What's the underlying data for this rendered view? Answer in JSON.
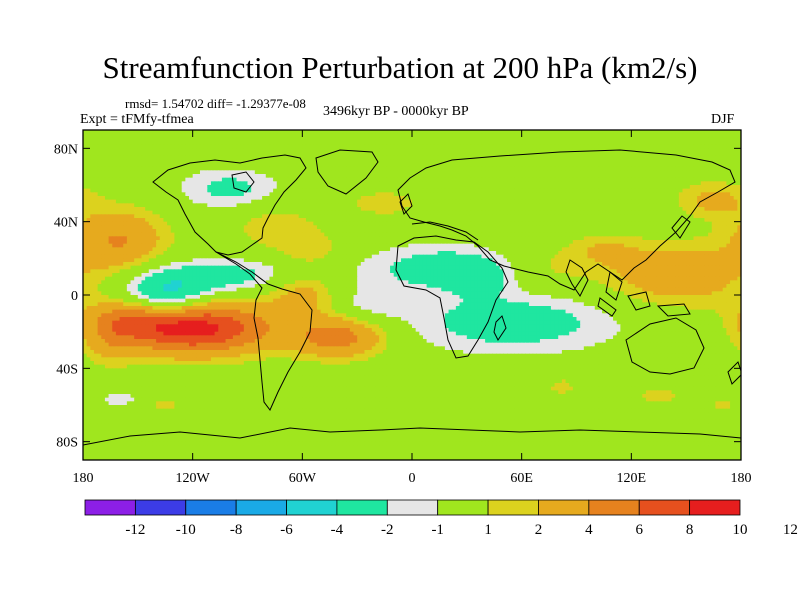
{
  "title": "Streamfunction Perturbation at 200 hPa (km2/s)",
  "stats": "rmsd= 1.54702 diff= -1.29377e-08",
  "expt": "Expt = tFMfy-tfmea",
  "period": "3496kyr BP - 0000kyr BP",
  "season": "DJF",
  "lat_labels": [
    {
      "lat": 80,
      "label": "80N"
    },
    {
      "lat": 40,
      "label": "40N"
    },
    {
      "lat": 0,
      "label": "0"
    },
    {
      "lat": -40,
      "label": "40S"
    },
    {
      "lat": -80,
      "label": "80S"
    }
  ],
  "lon_labels": [
    {
      "lon": -180,
      "label": "180"
    },
    {
      "lon": -120,
      "label": "120W"
    },
    {
      "lon": -60,
      "label": "60W"
    },
    {
      "lon": 0,
      "label": "0"
    },
    {
      "lon": 60,
      "label": "60E"
    },
    {
      "lon": 120,
      "label": "120E"
    },
    {
      "lon": 180,
      "label": "180"
    }
  ],
  "colorbar": {
    "colors": [
      "#8c1fe6",
      "#3c3ce6",
      "#1a7de6",
      "#1aaae6",
      "#20d2d2",
      "#1fe6a0",
      "#e6e6e6",
      "#a0e61e",
      "#dcd21e",
      "#e6aa1e",
      "#e6821e",
      "#e6501e",
      "#e61e1e"
    ],
    "labels": [
      "-12",
      "-10",
      "-8",
      "-6",
      "-4",
      "-2",
      "-1",
      "1",
      "2",
      "4",
      "6",
      "8",
      "10",
      "12"
    ]
  },
  "chart_data": {
    "type": "heatmap",
    "title": "Streamfunction Perturbation at 200 hPa (km2/s)",
    "projection": "cylindrical equidistant",
    "lon_range": [
      -180,
      180
    ],
    "lat_range": [
      -90,
      90
    ],
    "levels": [
      -12,
      -10,
      -8,
      -6,
      -4,
      -2,
      -1,
      1,
      2,
      4,
      6,
      8,
      10,
      12
    ],
    "features": [
      {
        "lon": -160,
        "lat": 30,
        "sx": 18,
        "sy": 12,
        "value": 4
      },
      {
        "lon": -120,
        "lat": -18,
        "sx": 30,
        "sy": 10,
        "value": 9
      },
      {
        "lon": -150,
        "lat": -12,
        "sx": 18,
        "sy": 7,
        "value": 3
      },
      {
        "lon": -40,
        "lat": -23,
        "sx": 18,
        "sy": 8,
        "value": 5
      },
      {
        "lon": -60,
        "lat": 2,
        "sx": 15,
        "sy": 9,
        "value": 3
      },
      {
        "lon": -100,
        "lat": 10,
        "sx": 35,
        "sy": 7,
        "value": -2.8
      },
      {
        "lon": -135,
        "lat": -2,
        "sx": 16,
        "sy": 9,
        "value": -5
      },
      {
        "lon": -75,
        "lat": 37,
        "sx": 16,
        "sy": 9,
        "value": 1.8
      },
      {
        "lon": -55,
        "lat": 25,
        "sx": 12,
        "sy": 7,
        "value": 1.6
      },
      {
        "lon": -100,
        "lat": 58,
        "sx": 20,
        "sy": 8,
        "value": -2.5
      },
      {
        "lon": -15,
        "lat": 50,
        "sx": 16,
        "sy": 6,
        "value": 1.5
      },
      {
        "lon": 18,
        "lat": 15,
        "sx": 30,
        "sy": 9,
        "value": -3
      },
      {
        "lon": 40,
        "lat": 10,
        "sx": 12,
        "sy": 7,
        "value": -1.8
      },
      {
        "lon": 55,
        "lat": -15,
        "sx": 42,
        "sy": 12,
        "value": -3
      },
      {
        "lon": -25,
        "lat": -5,
        "sx": 15,
        "sy": 7,
        "value": -1.5
      },
      {
        "lon": 68,
        "lat": 14,
        "sx": 22,
        "sy": 9,
        "value": 1.5
      },
      {
        "lon": 145,
        "lat": 11,
        "sx": 28,
        "sy": 12,
        "value": 3.5
      },
      {
        "lon": 105,
        "lat": 25,
        "sx": 14,
        "sy": 6,
        "value": 1.6
      },
      {
        "lon": 165,
        "lat": 52,
        "sx": 14,
        "sy": 7,
        "value": 2.5
      },
      {
        "lon": -165,
        "lat": -25,
        "sx": 10,
        "sy": 10,
        "value": 2
      },
      {
        "lon": 82,
        "lat": -50,
        "sx": 5,
        "sy": 3,
        "value": 1.8
      },
      {
        "lon": 135,
        "lat": -55,
        "sx": 8,
        "sy": 3,
        "value": 1.8
      },
      {
        "lon": -160,
        "lat": -57,
        "sx": 8,
        "sy": 3,
        "value": -1.6
      },
      {
        "lon": 170,
        "lat": -60,
        "sx": 5,
        "sy": 3,
        "value": 1.4
      },
      {
        "lon": -135,
        "lat": -60,
        "sx": 8,
        "sy": 4,
        "value": 1.3
      }
    ]
  }
}
